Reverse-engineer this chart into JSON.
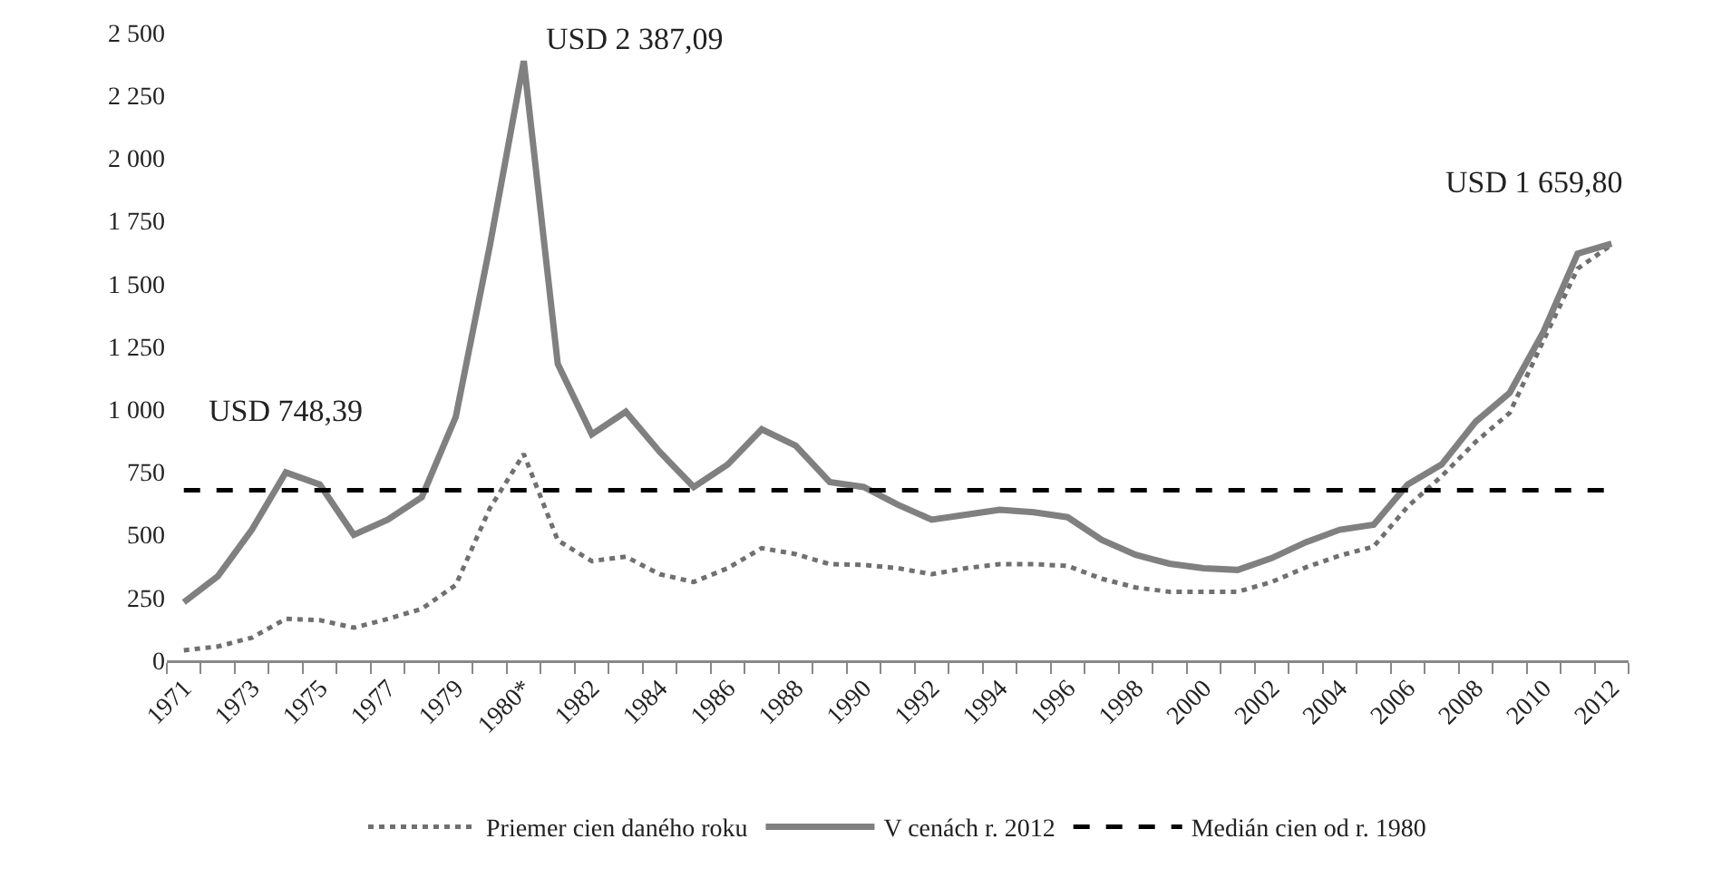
{
  "chart_data": {
    "type": "line",
    "categories": [
      "1971",
      null,
      "1973",
      null,
      "1975",
      null,
      "1977",
      null,
      "1979",
      null,
      "1980*",
      null,
      "1982",
      null,
      "1984",
      null,
      "1986",
      null,
      "1988",
      null,
      "1990",
      null,
      "1992",
      null,
      "1994",
      null,
      "1996",
      null,
      "1998",
      null,
      "2000",
      null,
      "2002",
      null,
      "2004",
      null,
      "2006",
      null,
      "2008",
      null,
      "2010",
      null,
      "2012"
    ],
    "series": [
      {
        "name": "Priemer cien daného roku",
        "color": "#707070",
        "line_style": "dotted",
        "values": [
          40,
          55,
          90,
          165,
          160,
          130,
          165,
          205,
          300,
          605,
          822,
          478,
          395,
          413,
          343,
          312,
          367,
          447,
          423,
          383,
          380,
          367,
          343,
          367,
          383,
          383,
          376,
          325,
          290,
          273,
          273,
          273,
          312,
          370,
          417,
          453,
          612,
          733,
          870,
          985,
          1275,
          1560,
          1655
        ]
      },
      {
        "name": "V cenách r. 2012",
        "color": "#808080",
        "line_style": "solid",
        "values": [
          231,
          335,
          520,
          748.39,
          700,
          500,
          560,
          650,
          970,
          1650,
          2387.09,
          1180,
          900,
          990,
          830,
          690,
          780,
          920,
          855,
          710,
          690,
          620,
          560,
          580,
          600,
          590,
          570,
          480,
          420,
          385,
          367,
          360,
          407,
          470,
          520,
          540,
          700,
          780,
          950,
          1065,
          1310,
          1620,
          1659.8
        ]
      },
      {
        "name": "Medián cien od r. 1980",
        "color": "#000000",
        "line_style": "dashed",
        "values": [
          677,
          677,
          677,
          677,
          677,
          677,
          677,
          677,
          677,
          677,
          677,
          677,
          677,
          677,
          677,
          677,
          677,
          677,
          677,
          677,
          677,
          677,
          677,
          677,
          677,
          677,
          677,
          677,
          677,
          677,
          677,
          677,
          677,
          677,
          677,
          677,
          677,
          677,
          677,
          677,
          677,
          677,
          677
        ]
      }
    ],
    "ylim": [
      0,
      2500
    ],
    "yticks": [
      0,
      250,
      500,
      750,
      {
        "value": 1000,
        "label": "1 000"
      },
      {
        "value": 1250,
        "label": "1 250"
      },
      {
        "value": 1500,
        "label": "1 500"
      },
      {
        "value": 1750,
        "label": "1 750"
      },
      {
        "value": 2000,
        "label": "2 000"
      },
      {
        "value": 2250,
        "label": "2 250"
      },
      {
        "value": 2500,
        "label": "2 500"
      }
    ],
    "annotations": [
      {
        "text": "USD 748,39",
        "y": 748.39
      },
      {
        "text": "USD 2 387,09",
        "x": "1980*",
        "y": 2387.09
      },
      {
        "text": "USD 1 659,80",
        "x": "2012",
        "y": 1659.8
      }
    ],
    "grid": false,
    "legend": "bottom",
    "marker": "none"
  }
}
